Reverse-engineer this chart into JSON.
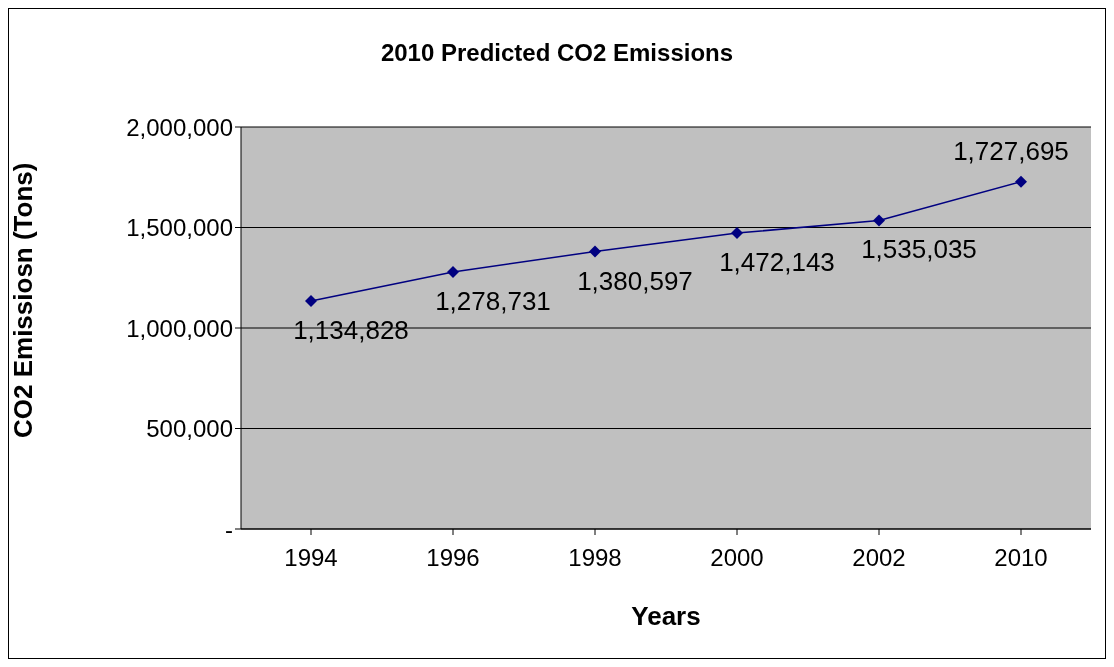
{
  "chart_data": {
    "type": "line",
    "title": "2010 Predicted CO2 Emissions",
    "xlabel": "Years",
    "ylabel": "CO2 Emissiosn (Tons)",
    "categories": [
      "1994",
      "1996",
      "1998",
      "2000",
      "2002",
      "2010"
    ],
    "series": [
      {
        "color": "#000080",
        "values": [
          1134828,
          1278731,
          1380597,
          1472143,
          1535035,
          1727695
        ],
        "value_labels": [
          "1,134,828",
          "1,278,731",
          "1,380,597",
          "1,472,143",
          "1,535,035",
          "1,727,695"
        ]
      }
    ],
    "ylim": [
      0,
      2000000
    ],
    "yticks": [
      {
        "value": 0,
        "label": "-"
      },
      {
        "value": 500000,
        "label": "500,000"
      },
      {
        "value": 1000000,
        "label": "1,000,000"
      },
      {
        "value": 1500000,
        "label": "1,500,000"
      },
      {
        "value": 2000000,
        "label": "2,000,000"
      }
    ],
    "grid": "y",
    "marker": "diamond",
    "line_style": "solid",
    "legend": false
  }
}
